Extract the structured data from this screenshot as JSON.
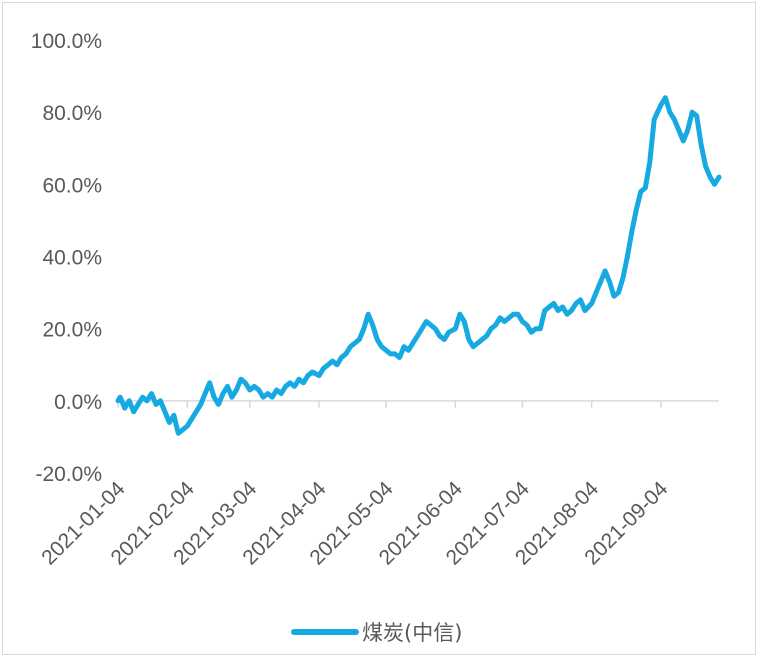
{
  "chart_data": {
    "type": "line",
    "title": "",
    "xlabel": "",
    "ylabel": "",
    "ylim": [
      -20,
      100
    ],
    "y_ticks": [
      "100.0%",
      "80.0%",
      "60.0%",
      "40.0%",
      "20.0%",
      "0.0%",
      "-20.0%"
    ],
    "y_tick_values": [
      100,
      80,
      60,
      40,
      20,
      0,
      -20
    ],
    "x_ticks": [
      "2021-01-04",
      "2021-02-04",
      "2021-03-04",
      "2021-04-04",
      "2021-05-04",
      "2021-06-04",
      "2021-07-04",
      "2021-08-04",
      "2021-09-04"
    ],
    "x_range": [
      "2021-01-04",
      "2021-09-30"
    ],
    "grid": false,
    "legend_position": "bottom",
    "series": [
      {
        "name": "煤炭(中信)",
        "color": "#17a9e1",
        "x": [
          "2021-01-04",
          "2021-01-05",
          "2021-01-07",
          "2021-01-09",
          "2021-01-11",
          "2021-01-13",
          "2021-01-15",
          "2021-01-17",
          "2021-01-19",
          "2021-01-21",
          "2021-01-23",
          "2021-01-25",
          "2021-01-27",
          "2021-01-29",
          "2021-01-31",
          "2021-02-02",
          "2021-02-04",
          "2021-02-06",
          "2021-02-08",
          "2021-02-10",
          "2021-02-12",
          "2021-02-14",
          "2021-02-16",
          "2021-02-18",
          "2021-02-20",
          "2021-02-22",
          "2021-02-24",
          "2021-02-26",
          "2021-02-28",
          "2021-03-02",
          "2021-03-04",
          "2021-03-06",
          "2021-03-08",
          "2021-03-10",
          "2021-03-12",
          "2021-03-14",
          "2021-03-16",
          "2021-03-18",
          "2021-03-20",
          "2021-03-22",
          "2021-03-24",
          "2021-03-26",
          "2021-03-28",
          "2021-03-30",
          "2021-04-01",
          "2021-04-04",
          "2021-04-06",
          "2021-04-08",
          "2021-04-10",
          "2021-04-12",
          "2021-04-14",
          "2021-04-16",
          "2021-04-18",
          "2021-04-20",
          "2021-04-22",
          "2021-04-24",
          "2021-04-26",
          "2021-04-28",
          "2021-04-30",
          "2021-05-02",
          "2021-05-04",
          "2021-05-06",
          "2021-05-08",
          "2021-05-10",
          "2021-05-12",
          "2021-05-14",
          "2021-05-16",
          "2021-05-18",
          "2021-05-20",
          "2021-05-22",
          "2021-05-24",
          "2021-05-26",
          "2021-05-28",
          "2021-05-30",
          "2021-06-01",
          "2021-06-04",
          "2021-06-06",
          "2021-06-08",
          "2021-06-10",
          "2021-06-12",
          "2021-06-14",
          "2021-06-16",
          "2021-06-18",
          "2021-06-20",
          "2021-06-22",
          "2021-06-24",
          "2021-06-26",
          "2021-06-28",
          "2021-06-30",
          "2021-07-02",
          "2021-07-04",
          "2021-07-06",
          "2021-07-08",
          "2021-07-10",
          "2021-07-12",
          "2021-07-14",
          "2021-07-16",
          "2021-07-18",
          "2021-07-20",
          "2021-07-22",
          "2021-07-24",
          "2021-07-26",
          "2021-07-28",
          "2021-07-30",
          "2021-08-01",
          "2021-08-04",
          "2021-08-06",
          "2021-08-08",
          "2021-08-10",
          "2021-08-12",
          "2021-08-14",
          "2021-08-16",
          "2021-08-18",
          "2021-08-20",
          "2021-08-22",
          "2021-08-24",
          "2021-08-26",
          "2021-08-28",
          "2021-08-30",
          "2021-09-01",
          "2021-09-04",
          "2021-09-06",
          "2021-09-08",
          "2021-09-10",
          "2021-09-12",
          "2021-09-14",
          "2021-09-16",
          "2021-09-18",
          "2021-09-20",
          "2021-09-22",
          "2021-09-24",
          "2021-09-26",
          "2021-09-28",
          "2021-09-30"
        ],
        "values": [
          0,
          1,
          -2,
          0,
          -3,
          -1,
          1,
          0,
          2,
          -1,
          0,
          -3,
          -6,
          -4,
          -9,
          -8,
          -7,
          -5,
          -3,
          -1,
          2,
          5,
          1,
          -1,
          2,
          4,
          1,
          3,
          6,
          5,
          3,
          4,
          3,
          1,
          2,
          1,
          3,
          2,
          4,
          5,
          4,
          6,
          5,
          7,
          8,
          7,
          9,
          10,
          11,
          10,
          12,
          13,
          15,
          16,
          17,
          20,
          24,
          21,
          17,
          15,
          14,
          13,
          13,
          12,
          15,
          14,
          16,
          18,
          20,
          22,
          21,
          20,
          18,
          17,
          19,
          20,
          24,
          22,
          17,
          15,
          16,
          17,
          18,
          20,
          21,
          23,
          22,
          23,
          24,
          24,
          22,
          21,
          19,
          20,
          20,
          25,
          26,
          27,
          25,
          26,
          24,
          25,
          27,
          28,
          25,
          27,
          30,
          33,
          36,
          33,
          29,
          30,
          34,
          40,
          47,
          53,
          58,
          59,
          66,
          78,
          82,
          84,
          80,
          78,
          75,
          72,
          75,
          80,
          79,
          71,
          65,
          62,
          60,
          62
        ]
      }
    ]
  }
}
